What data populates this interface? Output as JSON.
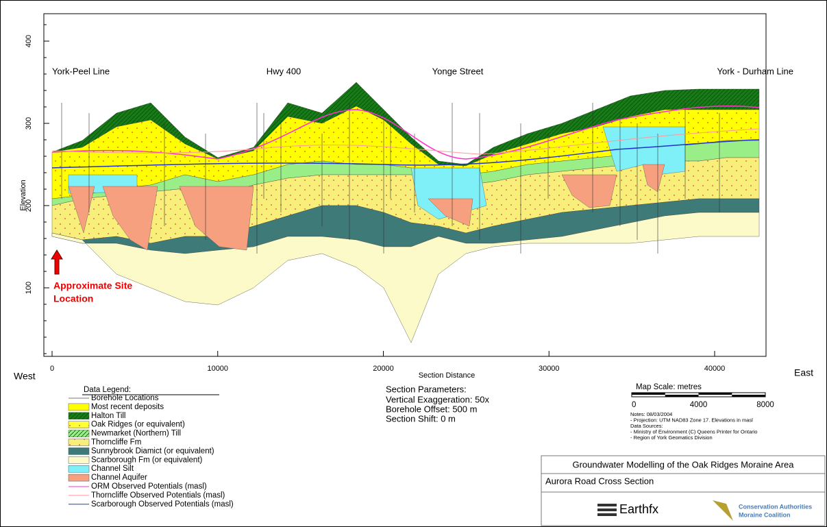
{
  "axes": {
    "y_label": "Elevation",
    "x_label": "Section Distance",
    "yticks": [
      100,
      200,
      300,
      400
    ],
    "xticks": [
      0,
      10000,
      20000,
      30000,
      40000
    ],
    "west": "West",
    "east": "East"
  },
  "places": [
    "York-Peel Line",
    "Hwy 400",
    "Yonge Street",
    "York - Durham Line"
  ],
  "annotation": [
    "Approximate Site",
    "Location"
  ],
  "legend": {
    "title": "Data Legend:",
    "items": [
      {
        "label": "Borehole Locations",
        "color": "#777777"
      },
      {
        "label": "Most recent deposits",
        "color": "#ffff00"
      },
      {
        "label": "Halton Till",
        "color": "#1a7a1a"
      },
      {
        "label": "Oak Ridges (or equivalent)",
        "color": "#ffff33"
      },
      {
        "label": "Newmarket (Northern) Till",
        "color": "#99ee88"
      },
      {
        "label": "Thorncliffe Fm",
        "color": "#f8ef7a"
      },
      {
        "label": "Sunnybrook Diamict (or equivalent)",
        "color": "#3d7a78"
      },
      {
        "label": "Scarborough Fm (or equivalent)",
        "color": "#fbfac8"
      },
      {
        "label": "Channel Silt",
        "color": "#80f0f8"
      },
      {
        "label": "Channel Aquifer",
        "color": "#f6a080"
      },
      {
        "label": "ORM Observed Potentials (masl)",
        "color": "#ff33cc"
      },
      {
        "label": "Thorncliffe Observed Potentials (masl)",
        "color": "#ff9999"
      },
      {
        "label": "Scarborough Observed Potentials (masl)",
        "color": "#2233cc"
      }
    ]
  },
  "section_parameters": {
    "title": "Section Parameters:",
    "lines": [
      "Vertical Exaggeration: 50x",
      "Borehole Offset: 500 m",
      "Section Shift: 0 m"
    ]
  },
  "map_scale": {
    "title": "Map Scale: metres",
    "ticks": [
      0,
      4000,
      8000
    ]
  },
  "notes": [
    "Notes:  08/03/2004",
    "- Projection: UTM NAD83 Zone 17. Elevations in masl",
    "Data Sources:",
    "- Ministry of Environment (C) Queens Printer for Ontario",
    "- Region of York Geomatics Division"
  ],
  "title_block": {
    "project": "Groundwater Modelling of the Oak Ridges Moraine Area",
    "section": "Aurora Road Cross Section",
    "logo_left": "Earthfx",
    "logo_right": [
      "Conservation Authorities",
      "Moraine Coalition"
    ]
  }
}
